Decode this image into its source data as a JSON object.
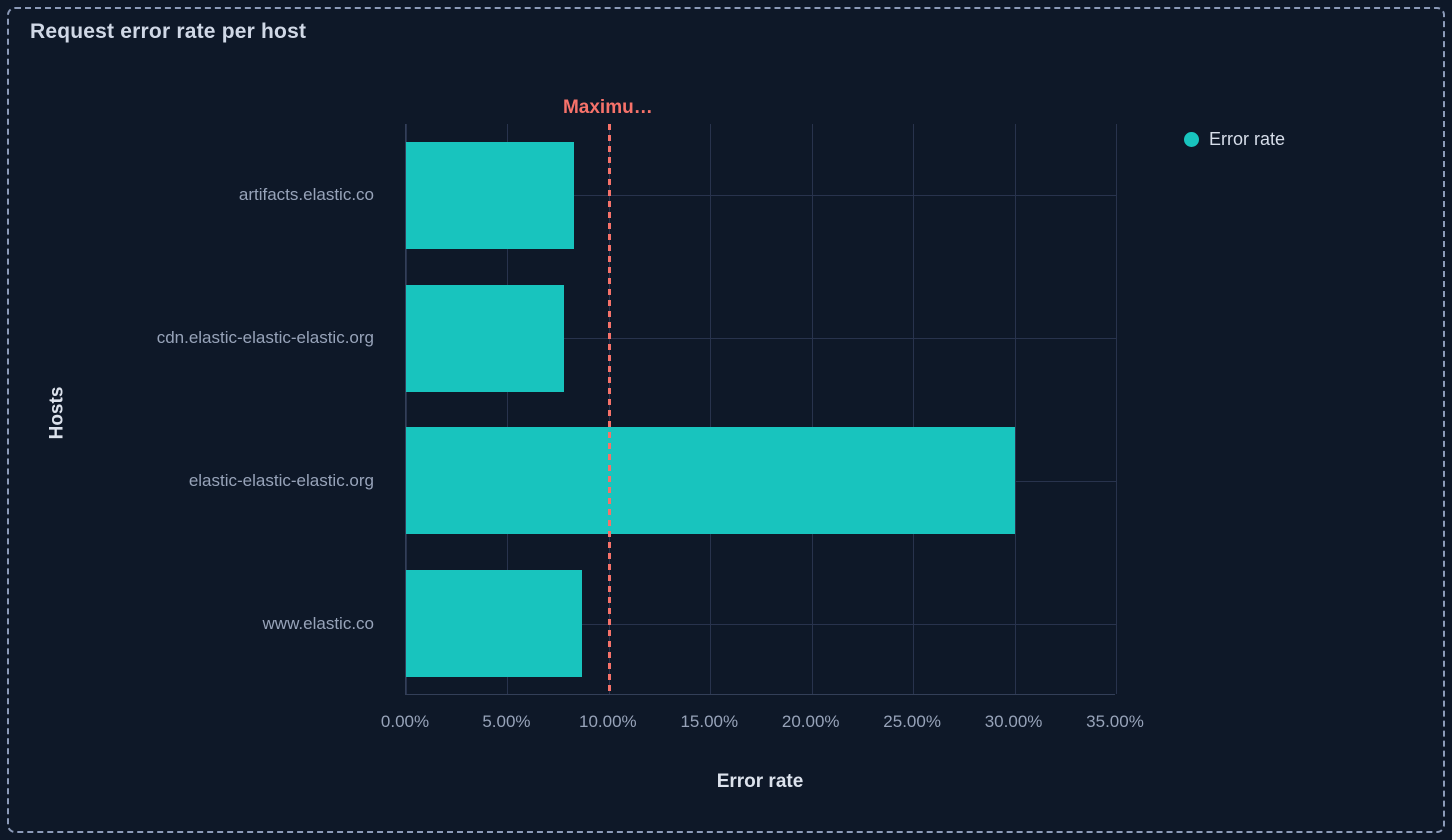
{
  "panel": {
    "title": "Request error rate per host"
  },
  "legend": {
    "items": [
      {
        "label": "Error rate",
        "color": "#18C4BE"
      }
    ]
  },
  "chart_data": {
    "type": "bar",
    "orientation": "horizontal",
    "title": "Request error rate per host",
    "xlabel": "Error rate",
    "ylabel": "Hosts",
    "categories": [
      "artifacts.elastic.co",
      "cdn.elastic-elastic-elastic.org",
      "elastic-elastic-elastic.org",
      "www.elastic.co"
    ],
    "series": [
      {
        "name": "Error rate",
        "color": "#18C4BE",
        "unit": "%",
        "values": [
          8.3,
          7.8,
          30.0,
          8.7
        ]
      }
    ],
    "xlim": [
      0,
      35
    ],
    "x_tick_values": [
      0,
      5,
      10,
      15,
      20,
      25,
      30,
      35
    ],
    "x_tick_labels": [
      "0.00%",
      "5.00%",
      "10.00%",
      "15.00%",
      "20.00%",
      "25.00%",
      "30.00%",
      "35.00%"
    ],
    "grid": true,
    "legend_position": "top-right",
    "annotation": {
      "label": "Maximu…",
      "value": 10,
      "color": "#F6726A",
      "line_style": "dashed"
    }
  },
  "colors": {
    "background": "#0E1828",
    "panel_border": "#8C9BB9",
    "gridline": "#28334D",
    "axis_line": "#333F58",
    "bar": "#18C4BE",
    "annotation": "#F6726A",
    "title_text": "#D0D8E6",
    "tick_text": "#97A3B9",
    "axis_title_text": "#DCE2EC"
  }
}
